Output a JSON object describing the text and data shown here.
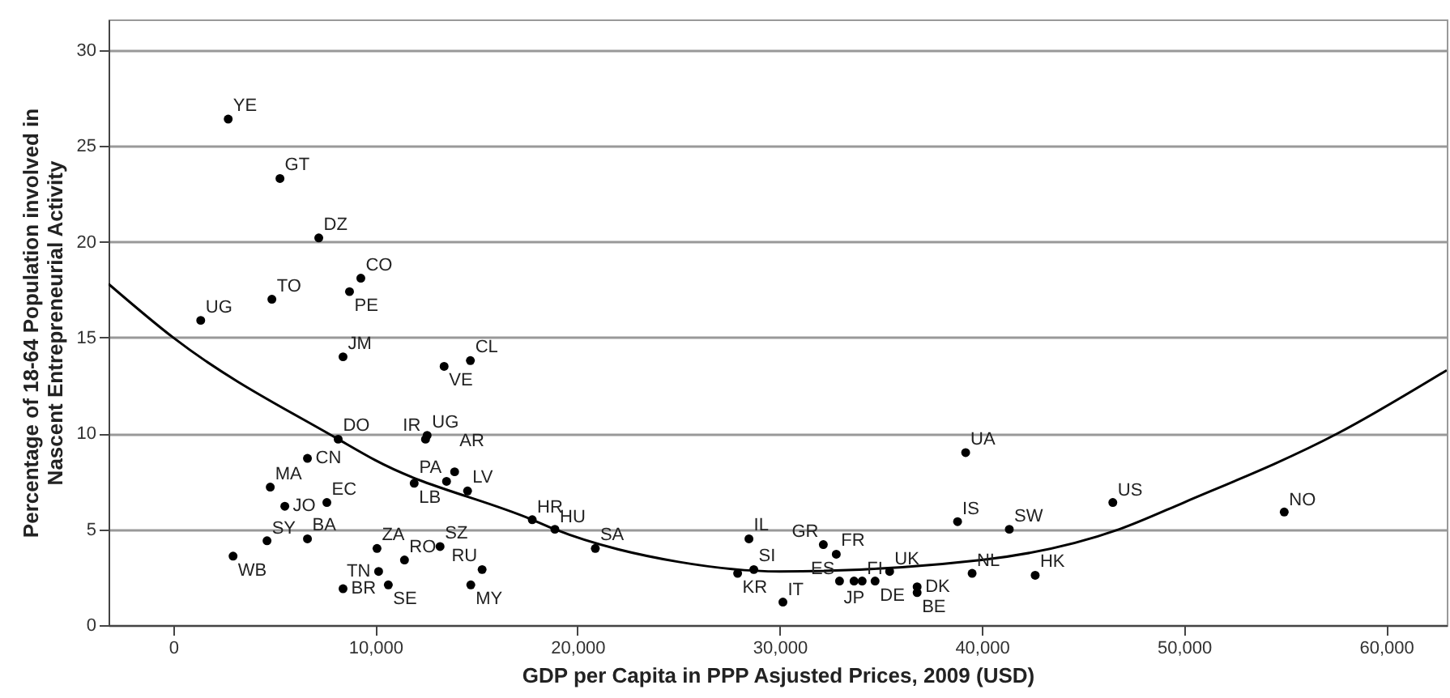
{
  "chart_data": {
    "type": "scatter",
    "xlabel": "GDP per Capita in PPP Asjusted Prices, 2009 (USD)",
    "ylabel": "Percentage of 18-64 Population involved in\nNascent Entrepreneurial Activity",
    "xlim": [
      -3200,
      63000
    ],
    "ylim": [
      0,
      31.6
    ],
    "xticks": [
      {
        "value": 0,
        "label": "0"
      },
      {
        "value": 10000,
        "label": "10,000"
      },
      {
        "value": 20000,
        "label": "20,000"
      },
      {
        "value": 30000,
        "label": "30,000"
      },
      {
        "value": 40000,
        "label": "40,000"
      },
      {
        "value": 50000,
        "label": "50,000"
      },
      {
        "value": 60000,
        "label": "60,000"
      }
    ],
    "yticks": [
      0,
      5,
      10,
      15,
      20,
      25,
      30
    ],
    "grid": "y",
    "marker": "circle",
    "series": [
      {
        "color": "#000000",
        "x": [
          2720,
          5280,
          7200,
          9280,
          8720,
          4880,
          1360,
          8400,
          14700,
          13400,
          8160,
          12480,
          12560,
          13920,
          13520,
          11920,
          14560,
          6640,
          4800,
          7600,
          5520,
          4640,
          6640,
          2960,
          10080,
          11440,
          13200,
          15280,
          10160,
          8400,
          10640,
          14720,
          17760,
          18880,
          20880,
          28480,
          28720,
          27920,
          30160,
          32160,
          32800,
          32960,
          33680,
          34080,
          34720,
          35440,
          36800,
          36800,
          39520,
          39200,
          38800,
          41360,
          42640,
          46480,
          54960
        ],
        "values": [
          26.4,
          23.3,
          20.2,
          18.1,
          17.4,
          17.0,
          15.9,
          14.0,
          13.8,
          13.5,
          9.7,
          9.7,
          9.9,
          8.0,
          7.5,
          7.4,
          7.0,
          8.7,
          7.2,
          6.4,
          6.2,
          4.4,
          4.5,
          3.6,
          4.0,
          3.4,
          4.1,
          2.9,
          2.8,
          1.9,
          2.1,
          2.1,
          5.5,
          5.0,
          4.0,
          4.5,
          2.9,
          2.7,
          1.2,
          4.2,
          3.7,
          2.3,
          2.3,
          2.3,
          2.3,
          2.8,
          2.0,
          1.7,
          2.7,
          9.0,
          5.4,
          5.0,
          2.6,
          6.4,
          5.9
        ]
      },
      {
        "type": "line",
        "marker": "none",
        "color": "#000000",
        "x": [
          -3200,
          0,
          8160,
          10000,
          17760,
          18880,
          25000,
          30000,
          40000,
          46800,
          50000,
          57600,
          63000
        ],
        "values": [
          17.8,
          15.0,
          9.7,
          8.6,
          5.5,
          5.0,
          3.3,
          2.8,
          3.4,
          5.0,
          6.4,
          10.0,
          13.3
        ]
      }
    ],
    "annotations": [
      {
        "text": "YE",
        "x": 2720,
        "y": 26.4
      },
      {
        "text": "GT",
        "x": 5280,
        "y": 23.3
      },
      {
        "text": "DZ",
        "x": 7200,
        "y": 20.2
      },
      {
        "text": "CO",
        "x": 9280,
        "y": 18.1
      },
      {
        "text": "PE",
        "x": 8720,
        "y": 17.4
      },
      {
        "text": "TO",
        "x": 4880,
        "y": 17.0
      },
      {
        "text": "UG",
        "x": 1360,
        "y": 15.9
      },
      {
        "text": "JM",
        "x": 8400,
        "y": 14.0
      },
      {
        "text": "CL",
        "x": 14700,
        "y": 13.8
      },
      {
        "text": "VE",
        "x": 13400,
        "y": 13.5
      },
      {
        "text": "DO",
        "x": 8160,
        "y": 9.7
      },
      {
        "text": "IR",
        "x": 12480,
        "y": 9.7
      },
      {
        "text": "UG",
        "x": 12560,
        "y": 9.9
      },
      {
        "text": "AR",
        "x": 13920,
        "y": 8.0
      },
      {
        "text": "PA",
        "x": 13520,
        "y": 7.5
      },
      {
        "text": "LB",
        "x": 11920,
        "y": 7.4
      },
      {
        "text": "LV",
        "x": 14560,
        "y": 7.0
      },
      {
        "text": "CN",
        "x": 6640,
        "y": 8.7
      },
      {
        "text": "MA",
        "x": 4800,
        "y": 7.2
      },
      {
        "text": "EC",
        "x": 7600,
        "y": 6.4
      },
      {
        "text": "JO",
        "x": 5520,
        "y": 6.2
      },
      {
        "text": "SY",
        "x": 4640,
        "y": 4.35
      },
      {
        "text": "BA",
        "x": 6640,
        "y": 4.5
      },
      {
        "text": "WB",
        "x": 2960,
        "y": 3.6
      },
      {
        "text": "ZA",
        "x": 10080,
        "y": 4.0
      },
      {
        "text": "RO",
        "x": 11440,
        "y": 3.4
      },
      {
        "text": "SZ",
        "x": 13200,
        "y": 4.1
      },
      {
        "text": "RU",
        "x": 15280,
        "y": 2.9
      },
      {
        "text": "TN",
        "x": 10160,
        "y": 2.8
      },
      {
        "text": "BR",
        "x": 8400,
        "y": 1.9
      },
      {
        "text": "SE",
        "x": 10640,
        "y": 2.1
      },
      {
        "text": "MY",
        "x": 14720,
        "y": 2.1
      },
      {
        "text": "HR",
        "x": 17760,
        "y": 5.45
      },
      {
        "text": "HU",
        "x": 18880,
        "y": 4.95
      },
      {
        "text": "SA",
        "x": 20880,
        "y": 4.0
      },
      {
        "text": "IL",
        "x": 28480,
        "y": 4.5
      },
      {
        "text": "SI",
        "x": 28720,
        "y": 2.9
      },
      {
        "text": "KR",
        "x": 27920,
        "y": 2.7
      },
      {
        "text": "IT",
        "x": 30160,
        "y": 1.15
      },
      {
        "text": "GR",
        "x": 32160,
        "y": 4.2
      },
      {
        "text": "FR",
        "x": 32800,
        "y": 3.7
      },
      {
        "text": "ES",
        "x": 32960,
        "y": 2.25
      },
      {
        "text": "JP",
        "x": 33680,
        "y": 2.25
      },
      {
        "text": "FI",
        "x": 34080,
        "y": 2.25
      },
      {
        "text": "DE",
        "x": 34720,
        "y": 2.3
      },
      {
        "text": "UK",
        "x": 35440,
        "y": 2.75
      },
      {
        "text": "DK",
        "x": 36800,
        "y": 2.0
      },
      {
        "text": "BE",
        "x": 36800,
        "y": 1.7
      },
      {
        "text": "NL",
        "x": 39520,
        "y": 2.65
      },
      {
        "text": "UA",
        "x": 39200,
        "y": 9.0
      },
      {
        "text": "IS",
        "x": 38800,
        "y": 5.35
      },
      {
        "text": "SW",
        "x": 41360,
        "y": 5.0
      },
      {
        "text": "HK",
        "x": 42640,
        "y": 2.6
      },
      {
        "text": "US",
        "x": 46480,
        "y": 6.35
      },
      {
        "text": "NO",
        "x": 54960,
        "y": 5.85
      }
    ]
  }
}
